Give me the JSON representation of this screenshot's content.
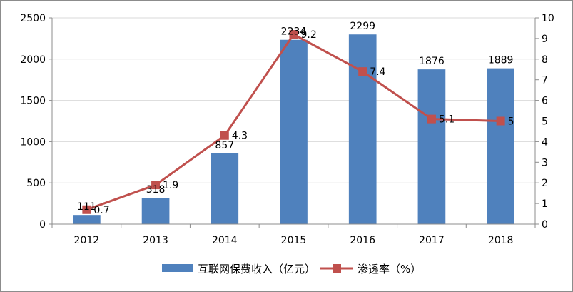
{
  "chart_data": {
    "type": "bar",
    "title": "",
    "categories": [
      "2012",
      "2013",
      "2014",
      "2015",
      "2016",
      "2017",
      "2018"
    ],
    "series": [
      {
        "name": "互联网保费收入（亿元）",
        "type": "bar",
        "axis": "left",
        "color": "#4f81bd",
        "values": [
          111,
          318,
          857,
          2234,
          2299,
          1876,
          1889
        ],
        "labels": [
          "111",
          "318",
          "857",
          "2234",
          "2299",
          "1876",
          "1889"
        ]
      },
      {
        "name": "渗透率（%）",
        "type": "line",
        "axis": "right",
        "color": "#c0504d",
        "marker": "square",
        "values": [
          0.7,
          1.9,
          4.3,
          9.2,
          7.4,
          5.1,
          5
        ],
        "labels": [
          "0.7",
          "1.9",
          "4.3",
          "9.2",
          "7.4",
          "5.1",
          "5"
        ]
      }
    ],
    "y_left": {
      "min": 0,
      "max": 2500,
      "ticks": [
        "0",
        "500",
        "1000",
        "1500",
        "2000",
        "2500"
      ]
    },
    "y_right": {
      "min": 0,
      "max": 10,
      "ticks": [
        "0",
        "1",
        "2",
        "3",
        "4",
        "5",
        "6",
        "7",
        "8",
        "9",
        "10"
      ]
    },
    "grid": "horizontal",
    "legend": "bottom"
  }
}
